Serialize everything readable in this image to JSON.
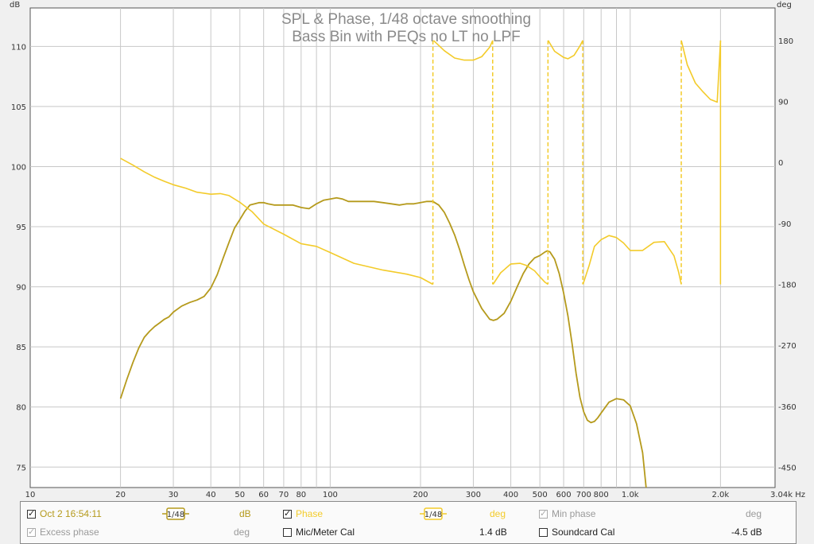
{
  "chart_data": {
    "type": "line",
    "title": "SPL & Phase, 1/48 octave smoothing",
    "subtitle": "Bass Bin with PEQs no LT no LPF",
    "y_left_unit": "dB",
    "y_right_unit": "deg",
    "x_unit": "Hz",
    "xscale": "log",
    "xlim": [
      10,
      3040
    ],
    "ylim_left": [
      73.3,
      113.2
    ],
    "ylim_right": [
      -480,
      228
    ],
    "x_ticks": [
      {
        "v": 10,
        "label": "10"
      },
      {
        "v": 20,
        "label": "20"
      },
      {
        "v": 30,
        "label": "30"
      },
      {
        "v": 40,
        "label": "40"
      },
      {
        "v": 50,
        "label": "50"
      },
      {
        "v": 60,
        "label": "60"
      },
      {
        "v": 70,
        "label": "70"
      },
      {
        "v": 80,
        "label": "80"
      },
      {
        "v": 100,
        "label": "100"
      },
      {
        "v": 200,
        "label": "200"
      },
      {
        "v": 300,
        "label": "300"
      },
      {
        "v": 400,
        "label": "400"
      },
      {
        "v": 500,
        "label": "500"
      },
      {
        "v": 600,
        "label": "600"
      },
      {
        "v": 700,
        "label": "700"
      },
      {
        "v": 800,
        "label": "800"
      },
      {
        "v": 1000,
        "label": "1.0k"
      },
      {
        "v": 2000,
        "label": "2.0k"
      },
      {
        "v": 3040,
        "label": "3.04k Hz"
      }
    ],
    "x_grid": [
      20,
      30,
      40,
      50,
      60,
      70,
      80,
      90,
      100,
      200,
      300,
      400,
      500,
      600,
      700,
      800,
      900,
      1000,
      2000
    ],
    "y_left_ticks": [
      75,
      80,
      85,
      90,
      95,
      100,
      105,
      110
    ],
    "y_right_ticks": [
      180,
      90,
      0,
      -90,
      -180,
      -270,
      -360,
      -450
    ],
    "series": [
      {
        "name": "Oct 2 16:54:11",
        "axis": "left",
        "color": "#b59a1c",
        "x": [
          20,
          21,
          22,
          23,
          24,
          25,
          26,
          27,
          28,
          29,
          30,
          32,
          34,
          36,
          38,
          40,
          42,
          44,
          46,
          48,
          50,
          52,
          54,
          56,
          58,
          60,
          62,
          65,
          68,
          70,
          75,
          80,
          85,
          90,
          95,
          100,
          105,
          110,
          115,
          120,
          130,
          140,
          150,
          160,
          170,
          180,
          190,
          200,
          210,
          220,
          230,
          240,
          250,
          260,
          270,
          280,
          290,
          300,
          320,
          340,
          350,
          360,
          380,
          400,
          420,
          440,
          460,
          480,
          500,
          520,
          530,
          540,
          560,
          580,
          600,
          620,
          640,
          660,
          680,
          700,
          720,
          740,
          760,
          780,
          800,
          850,
          900,
          950,
          1000,
          1050,
          1100,
          1130
        ],
        "y": [
          80.7,
          82.3,
          83.7,
          84.9,
          85.8,
          86.3,
          86.7,
          87.0,
          87.3,
          87.5,
          87.9,
          88.4,
          88.7,
          88.9,
          89.2,
          89.9,
          91.0,
          92.4,
          93.7,
          94.9,
          95.6,
          96.3,
          96.8,
          96.9,
          97.0,
          97.0,
          96.9,
          96.8,
          96.8,
          96.8,
          96.8,
          96.6,
          96.5,
          96.9,
          97.2,
          97.3,
          97.4,
          97.3,
          97.1,
          97.1,
          97.1,
          97.1,
          97.0,
          96.9,
          96.8,
          96.9,
          96.9,
          97.0,
          97.1,
          97.1,
          96.8,
          96.2,
          95.3,
          94.3,
          93.1,
          91.8,
          90.6,
          89.6,
          88.2,
          87.3,
          87.2,
          87.3,
          87.8,
          88.8,
          90.0,
          91.1,
          91.9,
          92.4,
          92.6,
          92.9,
          93.0,
          92.9,
          92.3,
          91.1,
          89.5,
          87.6,
          85.3,
          82.8,
          80.8,
          79.6,
          78.9,
          78.7,
          78.8,
          79.1,
          79.5,
          80.4,
          80.7,
          80.6,
          80.1,
          78.6,
          76.2,
          73.3
        ]
      },
      {
        "name": "Phase",
        "axis": "right",
        "color": "#f3cb2a",
        "segments": [
          {
            "x": [
              20,
              22,
              24,
              26,
              28,
              30,
              33,
              36,
              40,
              43,
              46,
              50,
              55,
              60,
              70,
              80,
              90,
              100,
              120,
              150,
              180,
              200,
              220
            ],
            "y": [
              6,
              -4,
              -14,
              -22,
              -28,
              -33,
              -38,
              -44,
              -47,
              -46,
              -49,
              -59,
              -73,
              -91,
              -106,
              -120,
              -124,
              -133,
              -149,
              -159,
              -165,
              -170,
              -180
            ]
          },
          {
            "x": [
              221,
              240,
              260,
              280,
              300,
              320,
              340,
              348
            ],
            "y": [
              180,
              165,
              154,
              151,
              151,
              156,
              170,
              180
            ]
          },
          {
            "x": [
              349,
              370,
              400,
              430,
              450,
              480,
              500,
              520,
              532
            ],
            "y": [
              -180,
              -163,
              -150,
              -149,
              -152,
              -160,
              -169,
              -177,
              -180
            ]
          },
          {
            "x": [
              533,
              560,
              600,
              620,
              650,
              680,
              695
            ],
            "y": [
              180,
              164,
              155,
              153,
              158,
              172,
              180
            ]
          },
          {
            "x": [
              696,
              730,
              760,
              800,
              850,
              900,
              950,
              1000,
              1100,
              1200,
              1300,
              1400,
              1450,
              1480
            ],
            "y": [
              -180,
              -152,
              -124,
              -114,
              -108,
              -111,
              -119,
              -130,
              -130,
              -118,
              -117,
              -138,
              -162,
              -180
            ]
          },
          {
            "x": [
              1481,
              1550,
              1650,
              1750,
              1850,
              1950,
              2000
            ],
            "y": [
              180,
              144,
              117,
              104,
              93,
              89,
              180
            ]
          }
        ],
        "dashed_connectors": [
          220,
          348,
          532,
          695,
          1480
        ],
        "solid_connectors": [
          2000
        ]
      }
    ]
  },
  "legend": {
    "row1": {
      "measurement_label": "Oct 2 16:54:11",
      "smoothing_label": "1/48",
      "spl_unit": "dB",
      "phase_label": "Phase",
      "phase_smoothing": "1/48",
      "phase_unit": "deg",
      "min_phase_label": "Min phase",
      "min_phase_unit": "deg"
    },
    "row2": {
      "excess_phase_label": "Excess phase",
      "excess_phase_unit": "deg",
      "mic_cal_label": "Mic/Meter Cal",
      "mic_cal_value": "1.4 dB",
      "soundcard_cal_label": "Soundcard Cal",
      "soundcard_cal_value": "-4.5 dB"
    },
    "colors": {
      "measurement": "#b59a1c",
      "phase": "#f3cb2a",
      "disabled": "#9a9a9a"
    }
  }
}
